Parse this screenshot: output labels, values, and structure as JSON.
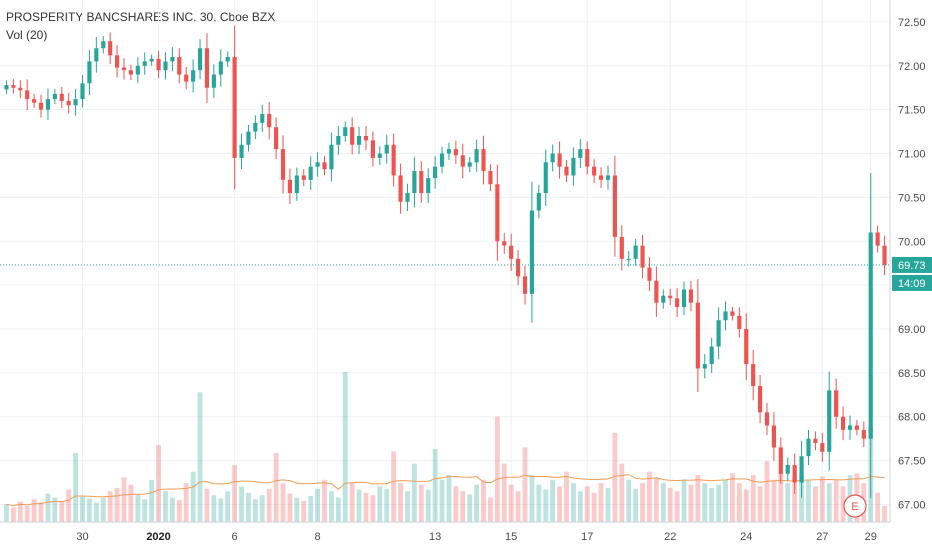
{
  "title": "PROSPERITY BANCSHARES INC, 30, Cboe BZX",
  "indicator": "Vol (20)",
  "chart_data": {
    "type": "candlestick",
    "ylim": [
      66.8,
      72.75
    ],
    "y_ticks": [
      "72.50",
      "72.00",
      "71.50",
      "71.00",
      "70.50",
      "70.00",
      "69.50",
      "69.00",
      "68.50",
      "68.00",
      "67.50",
      "67.00"
    ],
    "x_ticks": [
      {
        "label": "30",
        "bold": false,
        "bar": 11
      },
      {
        "label": "2020",
        "bold": true,
        "bar": 22
      },
      {
        "label": "6",
        "bold": false,
        "bar": 33
      },
      {
        "label": "8",
        "bold": false,
        "bar": 45
      },
      {
        "label": "13",
        "bold": false,
        "bar": 62
      },
      {
        "label": "15",
        "bold": false,
        "bar": 73
      },
      {
        "label": "17",
        "bold": false,
        "bar": 84
      },
      {
        "label": "22",
        "bold": false,
        "bar": 96
      },
      {
        "label": "24",
        "bold": false,
        "bar": 107
      },
      {
        "label": "27",
        "bold": false,
        "bar": 118
      },
      {
        "label": "29",
        "bold": false,
        "bar": 125
      }
    ],
    "last_price": "69.73",
    "countdown": "14:09",
    "earnings_marker": "E",
    "colors": {
      "up": "#26a69a",
      "down": "#ef5350",
      "vol_ma": "#f39c53",
      "last_line": "#26a69a"
    },
    "close_series": [
      71.78,
      71.75,
      71.72,
      71.62,
      71.58,
      71.5,
      71.62,
      71.68,
      71.6,
      71.55,
      71.62,
      71.8,
      72.05,
      72.2,
      72.28,
      72.12,
      71.98,
      71.95,
      71.9,
      72.0,
      72.05,
      72.08,
      71.95,
      72.05,
      72.1,
      71.9,
      71.82,
      71.95,
      72.2,
      71.75,
      71.9,
      72.05,
      72.1,
      70.95,
      71.1,
      71.25,
      71.35,
      71.45,
      71.3,
      71.05,
      70.7,
      70.55,
      70.75,
      70.7,
      70.85,
      70.9,
      70.82,
      71.1,
      71.2,
      71.3,
      71.1,
      71.2,
      71.15,
      70.95,
      71.0,
      71.1,
      70.75,
      70.45,
      70.55,
      70.8,
      70.55,
      70.72,
      70.85,
      71.0,
      71.05,
      70.98,
      70.85,
      70.9,
      71.05,
      70.8,
      70.65,
      70.0,
      69.95,
      69.8,
      69.6,
      69.4,
      70.35,
      70.55,
      70.9,
      71.0,
      70.85,
      70.75,
      70.95,
      71.05,
      70.85,
      70.75,
      70.7,
      70.75,
      70.05,
      69.8,
      69.8,
      69.95,
      69.7,
      69.55,
      69.3,
      69.38,
      69.35,
      69.25,
      69.45,
      69.3,
      68.55,
      68.6,
      68.8,
      69.1,
      69.2,
      69.15,
      69.0,
      68.6,
      68.35,
      68.05,
      67.9,
      67.65,
      67.35,
      67.45,
      67.25,
      67.55,
      67.75,
      67.7,
      67.6,
      68.3,
      68.0,
      67.85,
      67.9,
      67.85,
      67.75,
      70.1,
      69.95,
      69.73
    ],
    "volume_series": [
      22,
      18,
      25,
      20,
      28,
      24,
      35,
      30,
      26,
      40,
      85,
      32,
      29,
      24,
      30,
      38,
      42,
      55,
      46,
      34,
      28,
      52,
      95,
      38,
      30,
      27,
      48,
      62,
      160,
      41,
      33,
      29,
      38,
      70,
      44,
      36,
      28,
      33,
      41,
      85,
      48,
      35,
      30,
      26,
      32,
      41,
      52,
      38,
      30,
      185,
      48,
      40,
      36,
      33,
      44,
      41,
      87,
      48,
      38,
      72,
      46,
      40,
      90,
      52,
      58,
      44,
      38,
      34,
      46,
      52,
      30,
      130,
      72,
      46,
      38,
      92,
      58,
      46,
      40,
      52,
      44,
      62,
      48,
      38,
      44,
      36,
      48,
      42,
      110,
      72,
      52,
      41,
      48,
      62,
      55,
      48,
      42,
      38,
      52,
      46,
      58,
      48,
      42,
      46,
      52,
      60,
      48,
      40,
      58,
      44,
      75,
      52,
      62,
      48,
      56,
      60,
      52,
      44,
      56,
      48,
      52,
      44,
      58,
      60,
      48,
      118,
      36,
      20
    ]
  }
}
